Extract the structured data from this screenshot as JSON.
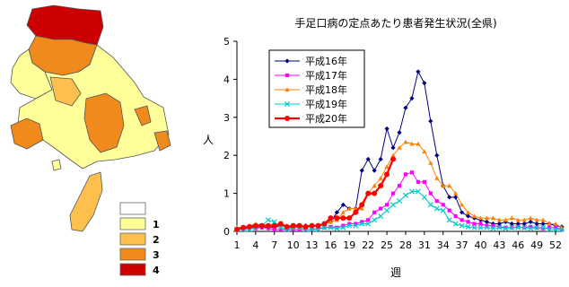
{
  "map_legend": {
    "items": [
      {
        "label": "",
        "color": "#ffffff"
      },
      {
        "label": "1",
        "color": "#ffff99"
      },
      {
        "label": "2",
        "color": "#ffbf4f"
      },
      {
        "label": "3",
        "color": "#f08a1c"
      },
      {
        "label": "4",
        "color": "#cc0000"
      }
    ]
  },
  "chart_data": {
    "type": "line",
    "title": "手足口病の定点あたり患者発生状況(全県)",
    "xlabel": "週",
    "ylabel": "人",
    "xlim": [
      1,
      53
    ],
    "ylim": [
      0,
      5
    ],
    "xticks": [
      1,
      4,
      7,
      10,
      13,
      16,
      19,
      22,
      25,
      28,
      31,
      34,
      37,
      40,
      43,
      46,
      49,
      52
    ],
    "yticks": [
      0,
      1,
      2,
      3,
      4,
      5
    ],
    "legend_position": "top-left",
    "series": [
      {
        "name": "平成16年",
        "color": "#000080",
        "marker": "diamond",
        "values": [
          0.08,
          0.1,
          0.12,
          0.1,
          0.1,
          0.12,
          0.1,
          0.15,
          0.12,
          0.1,
          0.12,
          0.15,
          0.15,
          0.15,
          0.2,
          0.25,
          0.5,
          0.7,
          0.6,
          0.6,
          1.6,
          1.9,
          1.6,
          1.9,
          2.7,
          2.2,
          2.6,
          3.25,
          3.5,
          4.2,
          3.9,
          2.9,
          2.0,
          1.2,
          0.9,
          0.9,
          0.5,
          0.4,
          0.35,
          0.3,
          0.25,
          0.2,
          0.2,
          0.25,
          0.2,
          0.2,
          0.2,
          0.25,
          0.2,
          0.2,
          0.2,
          0.15,
          0.12
        ]
      },
      {
        "name": "平成17年",
        "color": "#ff00ff",
        "marker": "square",
        "values": [
          0.05,
          0.05,
          0.1,
          0.08,
          0.1,
          0.08,
          0.05,
          0.05,
          0.05,
          0.05,
          0.05,
          0.05,
          0.05,
          0.08,
          0.1,
          0.12,
          0.1,
          0.15,
          0.2,
          0.2,
          0.25,
          0.3,
          0.5,
          0.6,
          0.7,
          1.0,
          1.2,
          1.5,
          1.55,
          1.3,
          1.3,
          1.0,
          0.8,
          0.7,
          0.55,
          0.4,
          0.3,
          0.25,
          0.2,
          0.2,
          0.15,
          0.15,
          0.12,
          0.1,
          0.1,
          0.12,
          0.1,
          0.12,
          0.1,
          0.08,
          0.1,
          0.1,
          0.05
        ]
      },
      {
        "name": "平成18年",
        "color": "#ff8000",
        "marker": "triangle",
        "values": [
          0.1,
          0.12,
          0.15,
          0.2,
          0.15,
          0.15,
          0.2,
          0.15,
          0.15,
          0.1,
          0.1,
          0.12,
          0.15,
          0.15,
          0.2,
          0.25,
          0.3,
          0.5,
          0.6,
          0.6,
          0.6,
          1.0,
          1.2,
          1.4,
          1.7,
          2.0,
          2.2,
          2.35,
          2.3,
          2.3,
          2.1,
          1.8,
          1.4,
          1.2,
          1.2,
          1.0,
          0.7,
          0.5,
          0.4,
          0.35,
          0.35,
          0.35,
          0.3,
          0.3,
          0.35,
          0.3,
          0.3,
          0.35,
          0.3,
          0.3,
          0.2,
          0.2,
          0.1
        ]
      },
      {
        "name": "平成19年",
        "color": "#00cccc",
        "marker": "x",
        "values": [
          0.05,
          0.05,
          0.05,
          0.1,
          0.15,
          0.3,
          0.25,
          0.1,
          0.05,
          0.1,
          0.1,
          0.05,
          0.05,
          0.05,
          0.1,
          0.1,
          0.08,
          0.1,
          0.15,
          0.15,
          0.2,
          0.2,
          0.3,
          0.4,
          0.55,
          0.7,
          0.8,
          0.95,
          1.05,
          1.05,
          0.9,
          0.7,
          0.6,
          0.55,
          0.3,
          0.2,
          0.15,
          0.12,
          0.1,
          0.1,
          0.1,
          0.08,
          0.1,
          0.08,
          0.1,
          0.1,
          0.1,
          0.08,
          0.1,
          0.1,
          0.05,
          0.05,
          0.05
        ]
      },
      {
        "name": "平成20年",
        "color": "#ff0000",
        "marker": "circle",
        "values": [
          0.05,
          0.1,
          0.12,
          0.15,
          0.15,
          0.15,
          0.15,
          0.2,
          0.12,
          0.15,
          0.15,
          0.12,
          0.15,
          0.15,
          0.2,
          0.35,
          0.35,
          0.35,
          0.35,
          0.5,
          0.7,
          1.0,
          1.0,
          1.2,
          1.5,
          1.9
        ]
      }
    ]
  }
}
